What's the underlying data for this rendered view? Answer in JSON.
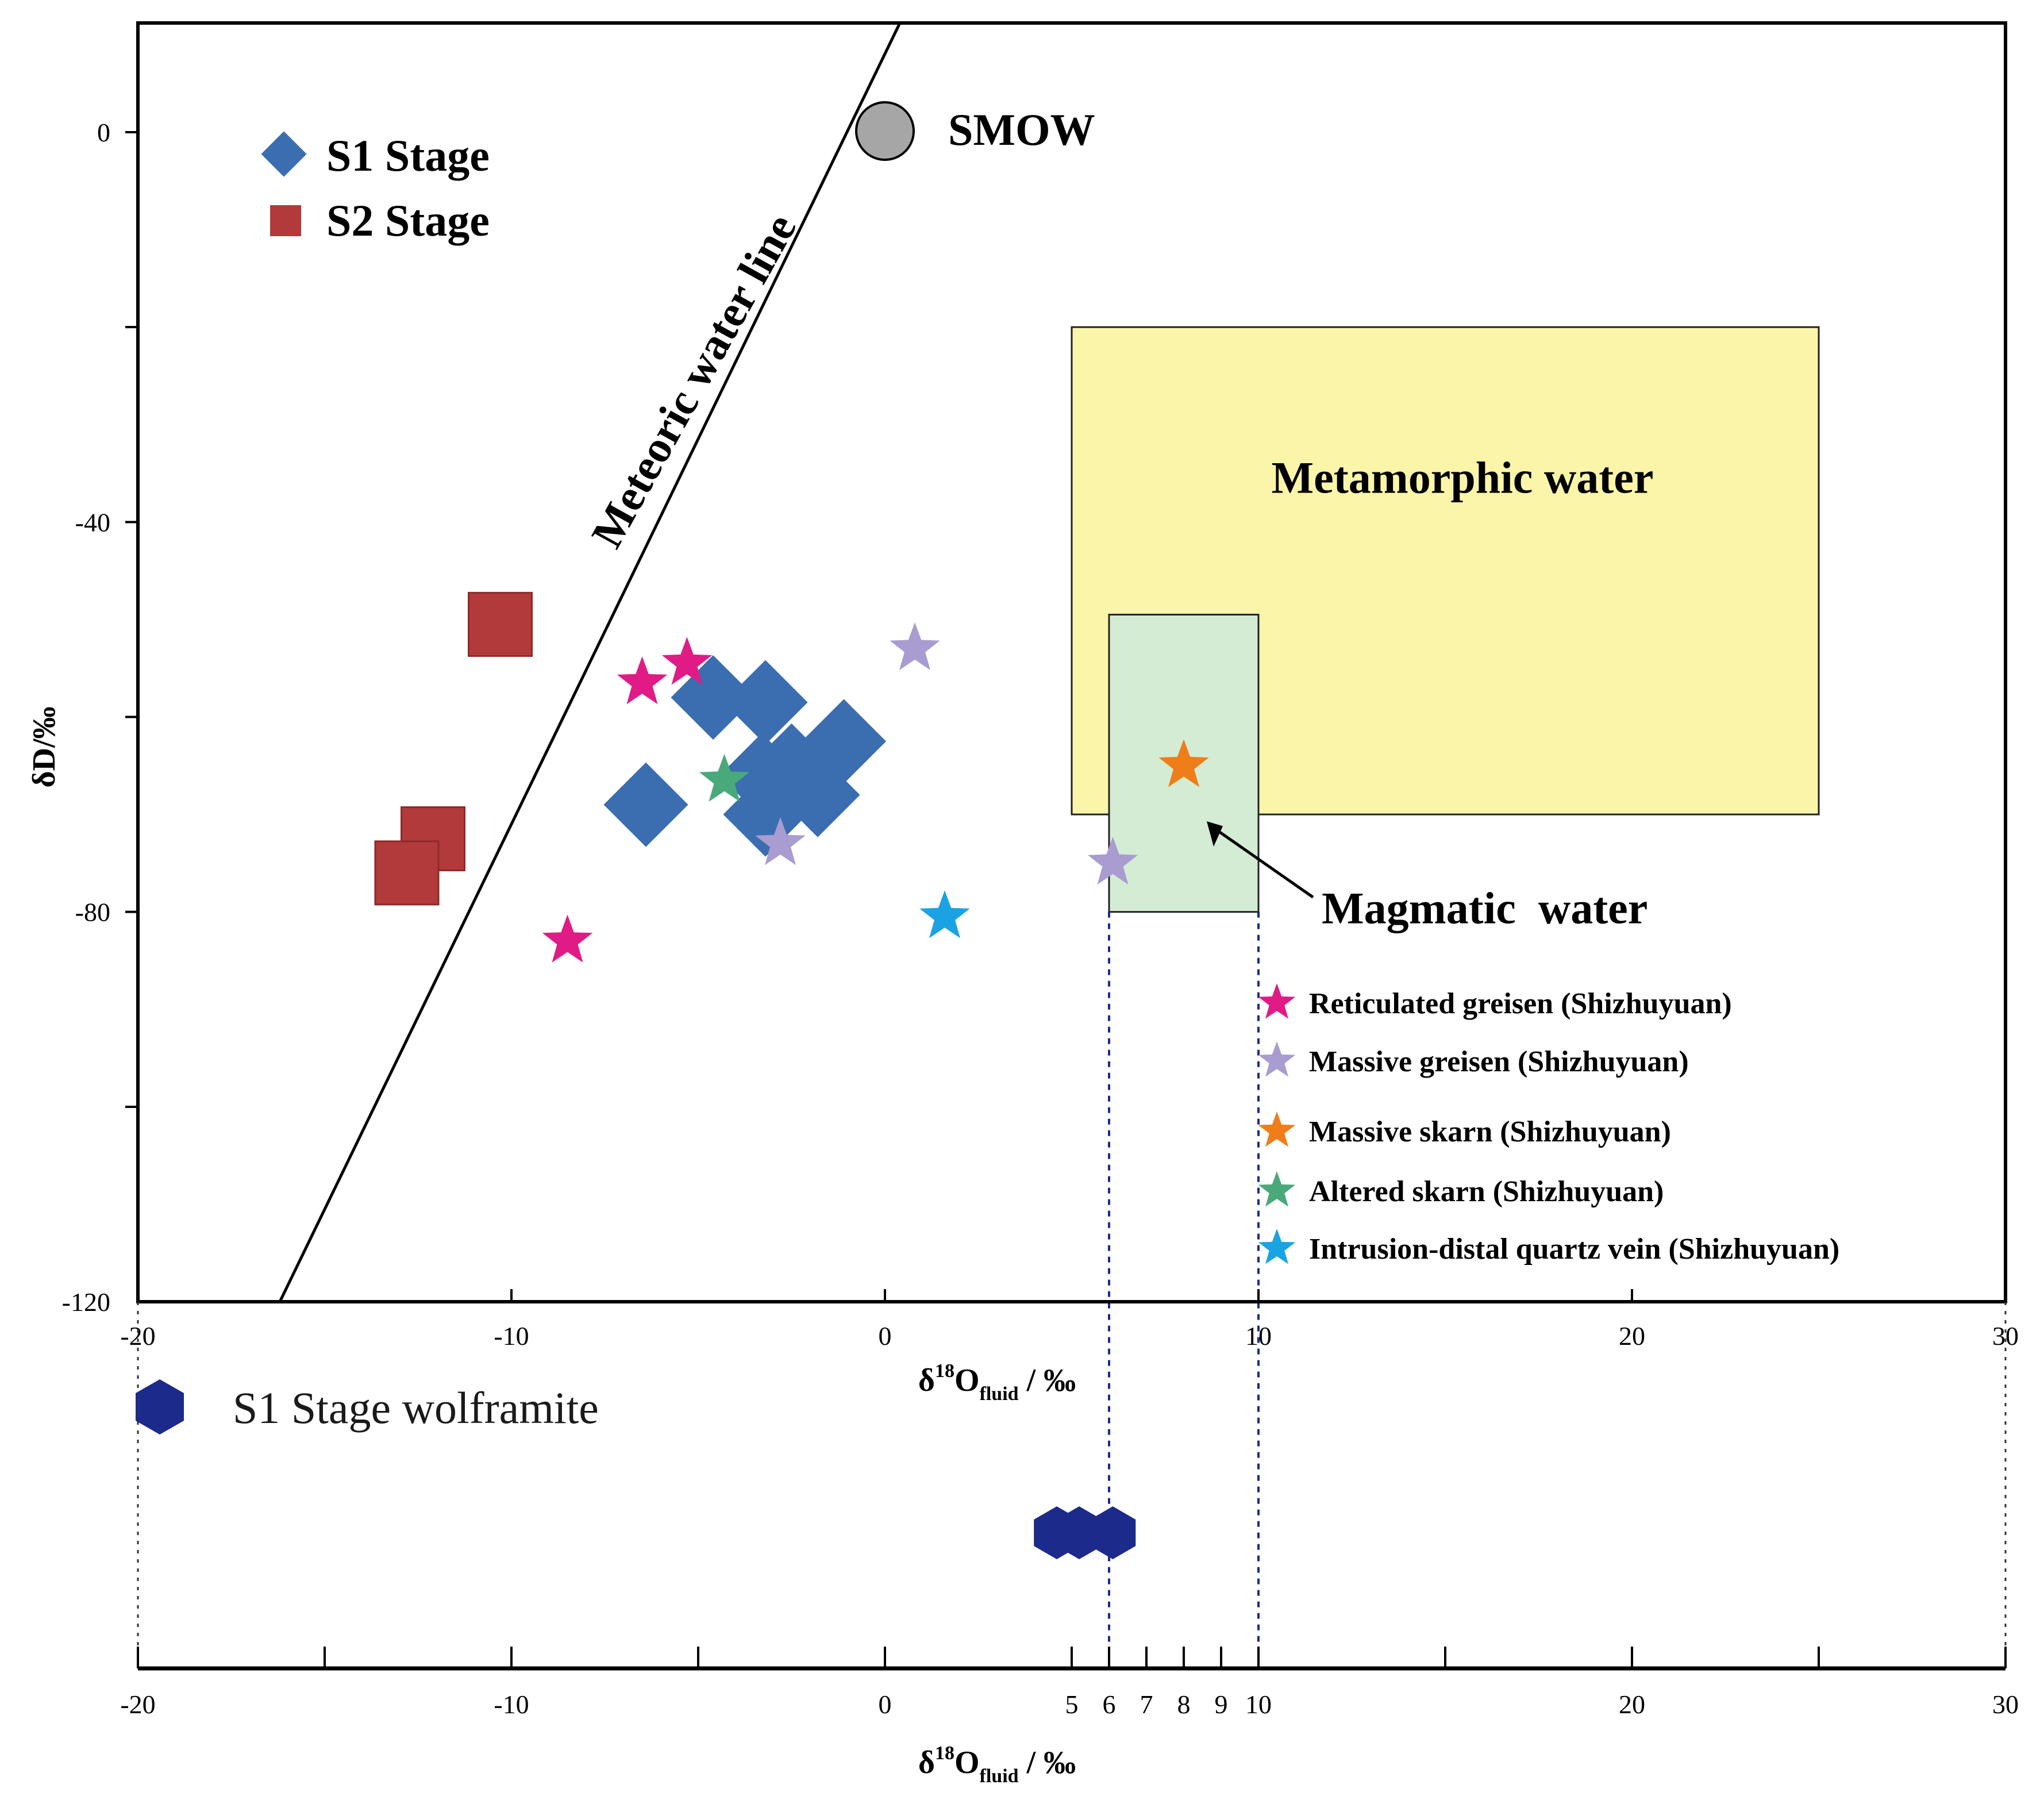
{
  "chart_data": [
    {
      "type": "scatter",
      "name": "dD vs d18O fluid",
      "xlabel": "δ18Ofluid / ‰",
      "xlabel_main": "δ",
      "xlabel_sup": "18",
      "xlabel_o": "O",
      "xlabel_sub": "fluid",
      "xlabel_unit": " / ‰",
      "ylabel": "δD/‰",
      "xlim": [
        -20,
        30
      ],
      "ylim": [
        -120,
        12
      ],
      "x_ticks": [
        -20,
        -10,
        0,
        10,
        20,
        30
      ],
      "x_tick_labels": [
        "-20",
        "-10",
        "0",
        "10",
        "20",
        "30"
      ],
      "y_ticks": [
        0,
        -20,
        -40,
        -60,
        -80,
        -100,
        -120
      ],
      "y_tick_labels": [
        "0",
        "",
        "-40",
        "",
        "-80",
        "",
        "-120"
      ],
      "meteoric_water_line": {
        "label": "Meteoric water line",
        "points": [
          [
            -16.2,
            -120
          ],
          [
            0.4,
            12
          ]
        ]
      },
      "smow": {
        "label": "SMOW",
        "x": 0,
        "y": 0
      },
      "regions": [
        {
          "label": "Metamorphic water",
          "x_range": [
            5,
            25
          ],
          "y_range": [
            -70,
            -20
          ],
          "color": "#fbf5a9"
        },
        {
          "label": "Magmatic  water",
          "x_range": [
            6,
            10
          ],
          "y_range": [
            -80,
            -49.5
          ],
          "color": "#d5ecd4"
        }
      ],
      "series": [
        {
          "name": "S1 Stage",
          "marker": "diamond",
          "color": "#3b6eb0",
          "points": [
            [
              -6.4,
              -69
            ],
            [
              -4.6,
              -58
            ],
            [
              -3.3,
              -66
            ],
            [
              -3.2,
              -70
            ],
            [
              -3.2,
              -58.5
            ],
            [
              -2.5,
              -65
            ],
            [
              -1.8,
              -68
            ],
            [
              -1.1,
              -62.5
            ]
          ]
        },
        {
          "name": "S2 Stage",
          "marker": "square",
          "color": "#b23a3a",
          "points": [
            [
              -10.3,
              -50.5
            ],
            [
              -12.1,
              -72.5
            ],
            [
              -12.8,
              -76
            ]
          ]
        },
        {
          "name": "Reticulated greisen (Shizhuyuan)",
          "marker": "star",
          "color": "#e01b86",
          "points": [
            [
              -6.5,
              -56.5
            ],
            [
              -5.3,
              -54.5
            ],
            [
              -8.5,
              -83
            ]
          ]
        },
        {
          "name": "Massive greisen (Shizhuyuan)",
          "marker": "star",
          "color": "#a99cd0",
          "points": [
            [
              0.8,
              -53
            ],
            [
              -2.8,
              -73
            ],
            [
              6.1,
              -75
            ]
          ]
        },
        {
          "name": "Massive skarn (Shizhuyuan)",
          "marker": "star",
          "color": "#ef7d1a",
          "points": [
            [
              8,
              -65
            ]
          ]
        },
        {
          "name": "Altered skarn (Shizhuyuan)",
          "marker": "star",
          "color": "#4aa97a",
          "points": [
            [
              -4.3,
              -66.5
            ]
          ]
        },
        {
          "name": "Intrusion-distal quartz vein (Shizhuyuan)",
          "marker": "star",
          "color": "#1aa3e3",
          "points": [
            [
              1.6,
              -80.5
            ]
          ]
        }
      ]
    },
    {
      "type": "scatter",
      "name": "S1 stage wolframite d18O",
      "xlabel": "δ18Ofluid / ‰",
      "xlim": [
        -20,
        30
      ],
      "x_ticks": [
        -20,
        -15,
        -10,
        -5,
        0,
        5,
        6,
        7,
        8,
        9,
        10,
        15,
        20,
        25,
        30
      ],
      "x_tick_labels": [
        "-20",
        "",
        "-10",
        "",
        "0",
        "5",
        "6",
        "7",
        "8",
        "9",
        "10",
        "",
        "20",
        "",
        "30"
      ],
      "series": [
        {
          "name": "S1 Stage wolframite",
          "marker": "hexagon",
          "color": "#1c2a8c",
          "x": [
            4.6,
            5.2,
            6.1
          ]
        }
      ]
    }
  ],
  "legend": {
    "s1_label": "S1 Stage",
    "s2_label": "S2 Stage",
    "wolframite_label": "S1 Stage wolframite",
    "star_items": [
      "Reticulated greisen (Shizhuyuan)",
      "Massive greisen (Shizhuyuan)",
      "Massive skarn (Shizhuyuan)",
      "Altered skarn (Shizhuyuan)",
      "Intrusion-distal quartz vein (Shizhuyuan)"
    ]
  }
}
